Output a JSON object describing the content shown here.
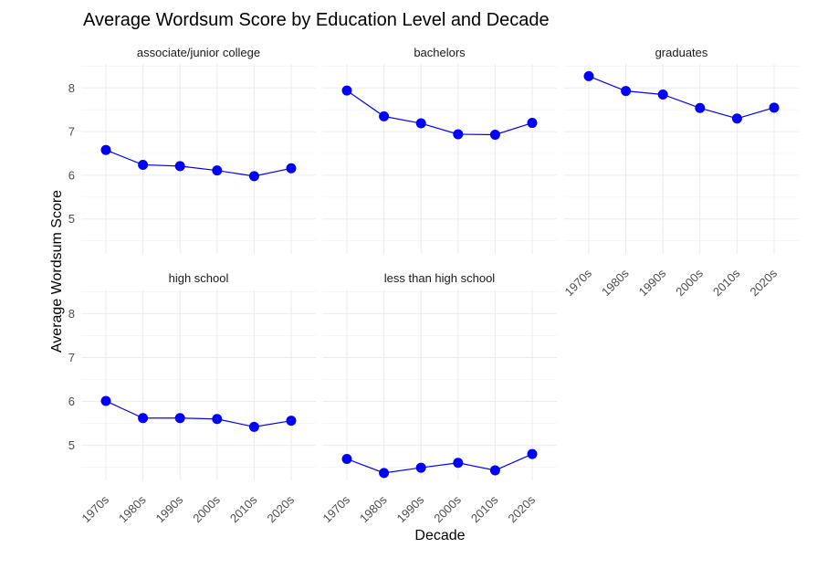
{
  "chart_data": {
    "type": "line",
    "title": "Average Wordsum Score by Education Level and Decade",
    "xlabel": "Decade",
    "ylabel": "Average Wordsum Score",
    "categories": [
      "1970s",
      "1980s",
      "1990s",
      "2000s",
      "2010s",
      "2020s"
    ],
    "yticks": [
      5,
      6,
      7,
      8
    ],
    "ylim": [
      4.2,
      8.55
    ],
    "grid": true,
    "line_color": "#0000ff",
    "point_color": "#0000ff",
    "panels": [
      {
        "name": "associate/junior college",
        "values": [
          6.58,
          6.24,
          6.21,
          6.11,
          5.98,
          6.16
        ]
      },
      {
        "name": "bachelors",
        "values": [
          7.94,
          7.35,
          7.19,
          6.94,
          6.93,
          7.2
        ]
      },
      {
        "name": "graduates",
        "values": [
          8.27,
          7.93,
          7.85,
          7.54,
          7.3,
          7.55
        ]
      },
      {
        "name": "high school",
        "values": [
          6.01,
          5.62,
          5.62,
          5.6,
          5.42,
          5.56
        ]
      },
      {
        "name": "less than high school",
        "values": [
          4.69,
          4.37,
          4.49,
          4.6,
          4.43,
          4.8
        ]
      }
    ]
  }
}
